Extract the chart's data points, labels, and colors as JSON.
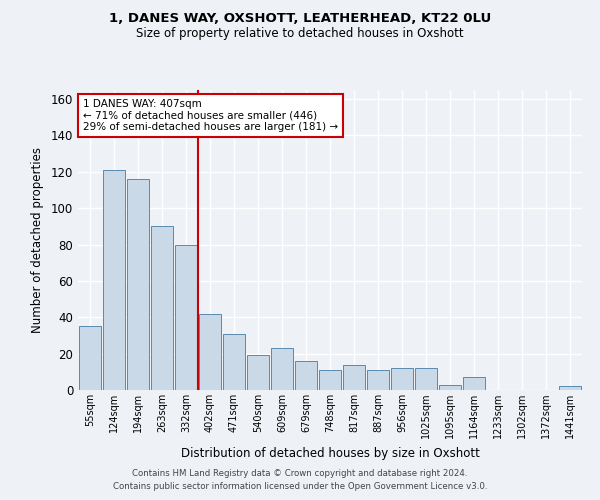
{
  "title1": "1, DANES WAY, OXSHOTT, LEATHERHEAD, KT22 0LU",
  "title2": "Size of property relative to detached houses in Oxshott",
  "xlabel": "Distribution of detached houses by size in Oxshott",
  "ylabel": "Number of detached properties",
  "categories": [
    "55sqm",
    "124sqm",
    "194sqm",
    "263sqm",
    "332sqm",
    "402sqm",
    "471sqm",
    "540sqm",
    "609sqm",
    "679sqm",
    "748sqm",
    "817sqm",
    "887sqm",
    "956sqm",
    "1025sqm",
    "1095sqm",
    "1164sqm",
    "1233sqm",
    "1302sqm",
    "1372sqm",
    "1441sqm"
  ],
  "values": [
    35,
    121,
    116,
    90,
    80,
    42,
    31,
    19,
    23,
    16,
    11,
    14,
    11,
    12,
    12,
    3,
    7,
    0,
    0,
    0,
    2
  ],
  "bar_color": "#c9d9e8",
  "bar_edge_color": "#5a8ab0",
  "vline_x_index": 5,
  "vline_color": "#cc0000",
  "annotation_text": "1 DANES WAY: 407sqm\n← 71% of detached houses are smaller (446)\n29% of semi-detached houses are larger (181) →",
  "annotation_box_color": "#ffffff",
  "annotation_box_edge": "#cc0000",
  "ylim": [
    0,
    165
  ],
  "yticks": [
    0,
    20,
    40,
    60,
    80,
    100,
    120,
    140,
    160
  ],
  "footer1": "Contains HM Land Registry data © Crown copyright and database right 2024.",
  "footer2": "Contains public sector information licensed under the Open Government Licence v3.0.",
  "bg_color": "#eef2f7",
  "grid_color": "#ffffff"
}
